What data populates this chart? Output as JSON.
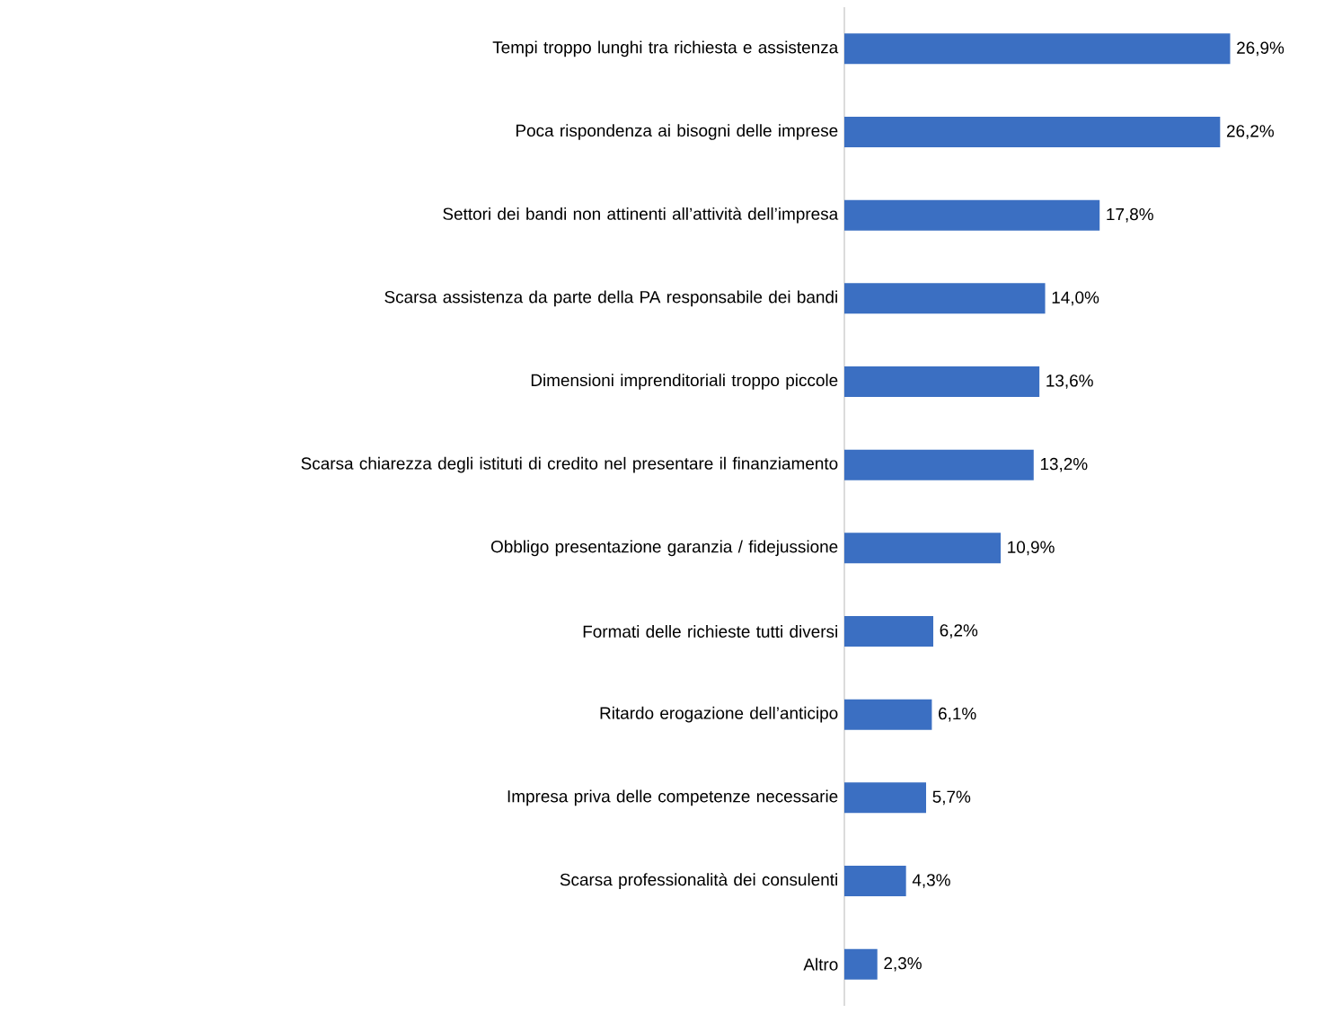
{
  "chart_data": {
    "type": "bar",
    "orientation": "horizontal",
    "color": "#3b6fc2",
    "categories": [
      "Tempi troppo lunghi tra richiesta e assistenza",
      "Poca rispondenza ai bisogni delle imprese",
      "Settori dei bandi non attinenti all’attività dell’impresa",
      "Scarsa assistenza da parte della PA responsabile dei bandi",
      "Dimensioni imprenditoriali troppo piccole",
      "Scarsa chiarezza degli istituti di credito nel presentare il finanziamento",
      "Obbligo presentazione garanzia / fidejussione",
      "Formati delle richieste tutti diversi",
      "Ritardo erogazione dell’anticipo",
      "Impresa priva delle competenze necessarie",
      "Scarsa professionalità dei consulenti",
      "Altro"
    ],
    "values": [
      26.9,
      26.2,
      17.8,
      14.0,
      13.6,
      13.2,
      10.9,
      6.2,
      6.1,
      5.7,
      4.3,
      2.3
    ],
    "value_labels": [
      "26,9%",
      "26,2%",
      "17,8%",
      "14,0%",
      "13,6%",
      "13,2%",
      "10,9%",
      "6,2%",
      "6,1%",
      "5,7%",
      "4,3%",
      "2,3%"
    ]
  }
}
